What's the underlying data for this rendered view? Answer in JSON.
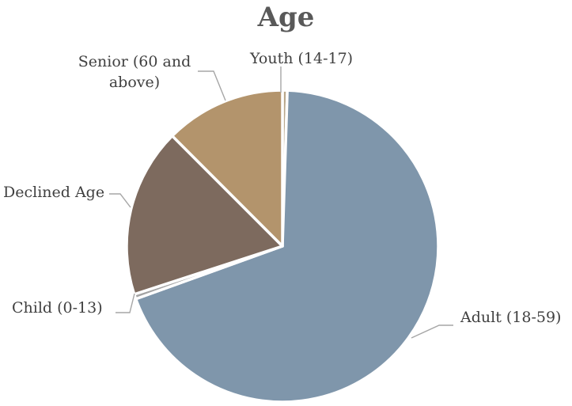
{
  "chart_data": {
    "type": "pie",
    "title": "Age",
    "slices": [
      {
        "label": "Youth (14-17)",
        "value": 0.5,
        "color": "#b9a78b"
      },
      {
        "label": "Adult (18-59)",
        "value": 69.0,
        "color": "#7f96ab"
      },
      {
        "label": "Child (0-13)",
        "value": 0.5,
        "color": "#a3a3a3"
      },
      {
        "label": "Declined Age",
        "value": 17.5,
        "color": "#7d6a5e"
      },
      {
        "label": "Senior (60 and above)",
        "value": 12.5,
        "color": "#b3946c"
      }
    ]
  }
}
